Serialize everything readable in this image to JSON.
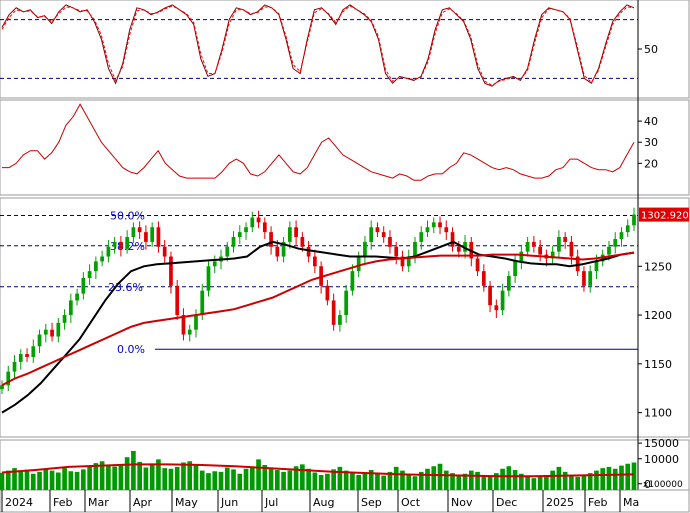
{
  "chart_data": [
    {
      "type": "line",
      "panel": "stochastic",
      "y_ticks": [
        "50"
      ],
      "ylim": [
        0,
        100
      ],
      "overbought": 80,
      "oversold": 20,
      "series": [
        {
          "color": "#8b0000",
          "values": [
            72,
            85,
            92,
            88,
            90,
            82,
            84,
            76,
            88,
            95,
            92,
            88,
            90,
            78,
            60,
            30,
            15,
            35,
            70,
            92,
            90,
            85,
            88,
            92,
            95,
            90,
            85,
            75,
            40,
            22,
            25,
            50,
            80,
            92,
            90,
            85,
            88,
            95,
            92,
            85,
            60,
            30,
            25,
            60,
            90,
            92,
            85,
            75,
            90,
            95,
            90,
            85,
            78,
            60,
            25,
            15,
            22,
            20,
            18,
            22,
            40,
            70,
            90,
            92,
            85,
            78,
            60,
            30,
            15,
            12,
            18,
            20,
            22,
            18,
            30,
            60,
            85,
            92,
            90,
            88,
            80,
            50,
            20,
            15,
            30,
            55,
            78,
            88,
            95,
            92
          ]
        },
        {
          "color": "#ff0000",
          "values": [
            70,
            82,
            90,
            88,
            89,
            83,
            83,
            78,
            86,
            93,
            92,
            89,
            89,
            80,
            64,
            35,
            18,
            32,
            65,
            89,
            90,
            86,
            87,
            91,
            94,
            90,
            86,
            77,
            45,
            25,
            25,
            47,
            76,
            90,
            90,
            86,
            87,
            93,
            92,
            86,
            63,
            34,
            27,
            57,
            87,
            91,
            86,
            77,
            88,
            94,
            90,
            86,
            79,
            63,
            29,
            17,
            21,
            20,
            19,
            21,
            37,
            66,
            87,
            91,
            86,
            79,
            63,
            34,
            17,
            13,
            17,
            19,
            21,
            19,
            28,
            56,
            82,
            91,
            90,
            88,
            81,
            53,
            23,
            16,
            28,
            52,
            75,
            86,
            93,
            92
          ]
        }
      ]
    },
    {
      "type": "line",
      "panel": "rsi-style-oscillator",
      "y_ticks": [
        "40",
        "30",
        "20"
      ],
      "ylim": [
        5,
        50
      ],
      "series": [
        {
          "color": "#cc0000",
          "values": [
            18,
            18,
            20,
            24,
            26,
            26,
            22,
            25,
            30,
            38,
            42,
            48,
            42,
            36,
            30,
            26,
            22,
            18,
            16,
            15,
            18,
            22,
            26,
            20,
            17,
            14,
            13,
            13,
            13,
            13,
            13,
            16,
            20,
            22,
            20,
            15,
            14,
            16,
            20,
            24,
            20,
            16,
            15,
            18,
            24,
            30,
            32,
            28,
            24,
            22,
            20,
            18,
            16,
            15,
            14,
            13,
            15,
            14,
            12,
            12,
            14,
            15,
            15,
            18,
            20,
            25,
            24,
            22,
            20,
            18,
            17,
            18,
            17,
            15,
            14,
            13,
            13,
            14,
            17,
            18,
            22,
            22,
            20,
            18,
            17,
            17,
            16,
            18,
            24,
            30
          ]
        }
      ]
    },
    {
      "type": "candlestick",
      "panel": "price",
      "y_ticks": [
        "1250",
        "1200",
        "1150",
        "1100"
      ],
      "ylim": [
        1075,
        1320
      ],
      "last_price": "1302.920",
      "fib_levels": [
        {
          "label": "50.0%",
          "value": 1302
        },
        {
          "label": "38.2%",
          "value": 1271
        },
        {
          "label": "23.6%",
          "value": 1229
        },
        {
          "label": "0.0%",
          "value": 1165
        }
      ],
      "close": [
        1128,
        1142,
        1152,
        1160,
        1157,
        1168,
        1180,
        1185,
        1178,
        1192,
        1200,
        1215,
        1222,
        1238,
        1245,
        1255,
        1260,
        1270,
        1275,
        1268,
        1280,
        1290,
        1285,
        1275,
        1290,
        1270,
        1260,
        1230,
        1200,
        1180,
        1185,
        1200,
        1225,
        1250,
        1255,
        1260,
        1270,
        1280,
        1285,
        1290,
        1300,
        1295,
        1285,
        1270,
        1260,
        1275,
        1290,
        1280,
        1270,
        1260,
        1250,
        1230,
        1215,
        1190,
        1200,
        1225,
        1245,
        1260,
        1275,
        1290,
        1285,
        1280,
        1270,
        1260,
        1250,
        1260,
        1275,
        1285,
        1290,
        1295,
        1290,
        1285,
        1270,
        1265,
        1275,
        1258,
        1245,
        1230,
        1210,
        1205,
        1225,
        1240,
        1255,
        1265,
        1275,
        1270,
        1262,
        1258,
        1265,
        1280,
        1275,
        1260,
        1245,
        1230,
        1245,
        1255,
        1262,
        1270,
        1278,
        1285,
        1292,
        1303
      ],
      "series": [
        {
          "name": "",
          "color": "#000000",
          "values": [
            1100,
            1108,
            1118,
            1130,
            1145,
            1160,
            1175,
            1195,
            1215,
            1232,
            1245,
            1250,
            1252,
            1253,
            1254,
            1255,
            1256,
            1257,
            1258,
            1260,
            1270,
            1275,
            1272,
            1268,
            1266,
            1264,
            1262,
            1260,
            1260,
            1260,
            1259,
            1258,
            1260,
            1265,
            1270,
            1275,
            1268,
            1262,
            1260,
            1258,
            1255,
            1253,
            1252,
            1252,
            1250,
            1252,
            1255,
            1258,
            1262,
            1264
          ]
        },
        {
          "name": "",
          "color": "#cc0000",
          "values": [
            1128,
            1135,
            1140,
            1146,
            1152,
            1158,
            1164,
            1170,
            1176,
            1182,
            1188,
            1192,
            1194,
            1196,
            1198,
            1200,
            1202,
            1204,
            1206,
            1210,
            1214,
            1218,
            1224,
            1230,
            1236,
            1240,
            1244,
            1248,
            1252,
            1255,
            1257,
            1258,
            1259,
            1260,
            1261,
            1261,
            1261,
            1261,
            1262,
            1262,
            1262,
            1261,
            1260,
            1259,
            1258,
            1257,
            1258,
            1260,
            1262,
            1264
          ]
        }
      ]
    },
    {
      "type": "bar",
      "panel": "volume",
      "y_ticks": [
        "15000",
        "10000",
        "0"
      ],
      "unit_label": "x100000",
      "ylim": [
        0,
        16000
      ],
      "values": [
        5500,
        6200,
        7000,
        5800,
        6500,
        5200,
        5800,
        6800,
        6200,
        5600,
        7200,
        6000,
        5800,
        6600,
        7800,
        8600,
        9200,
        8000,
        7500,
        8200,
        10500,
        12500,
        9000,
        7200,
        8500,
        9800,
        7000,
        6800,
        7400,
        8800,
        9200,
        7800,
        6200,
        5400,
        6000,
        5800,
        7200,
        6600,
        5200,
        6800,
        7400,
        9800,
        8000,
        7200,
        6400,
        5800,
        6200,
        7600,
        8200,
        6800,
        5600,
        4800,
        5200,
        6600,
        7400,
        6200,
        5400,
        4800,
        5600,
        6400,
        5200,
        4600,
        5800,
        7400,
        6200,
        5000,
        4400,
        5800,
        6800,
        7600,
        8400,
        6200,
        5400,
        4800,
        5200,
        6200,
        5800,
        4600,
        4200,
        5400,
        6800,
        7600,
        6400,
        5200,
        4400,
        3800,
        4200,
        4800,
        6200,
        7400,
        5800,
        4800,
        4200,
        4600,
        5400,
        6200,
        7000,
        7400,
        6800,
        7800,
        8400,
        8800
      ],
      "average": [
        5600,
        6400,
        7400,
        7800,
        8200,
        8200,
        8000,
        7600,
        7000,
        6400,
        5800,
        5400,
        5000,
        4800,
        4600,
        4400,
        4400,
        4600,
        4800,
        5000
      ]
    }
  ],
  "x_axis": {
    "labels": [
      "2024",
      "Feb",
      "Mar",
      "Apr",
      "May",
      "Jun",
      "Jul",
      "Aug",
      "Sep",
      "Oct",
      "Nov",
      "Dec",
      "2025",
      "Feb",
      "Ma"
    ]
  }
}
